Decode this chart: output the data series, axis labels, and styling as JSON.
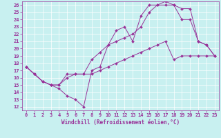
{
  "xlabel": "Windchill (Refroidissement éolien,°C)",
  "bg_color": "#c8f0f0",
  "line_color": "#993399",
  "xlim": [
    -0.5,
    23.5
  ],
  "ylim": [
    11.5,
    26.5
  ],
  "xticks": [
    0,
    1,
    2,
    3,
    4,
    5,
    6,
    7,
    8,
    9,
    10,
    11,
    12,
    13,
    14,
    15,
    16,
    17,
    18,
    19,
    20,
    21,
    22,
    23
  ],
  "yticks": [
    12,
    13,
    14,
    15,
    16,
    17,
    18,
    19,
    20,
    21,
    22,
    23,
    24,
    25,
    26
  ],
  "lines": [
    {
      "x": [
        0,
        1,
        2,
        3,
        4,
        5,
        6,
        7,
        8,
        9,
        10,
        11,
        12,
        13,
        14,
        15,
        16,
        17,
        18,
        19,
        20,
        21,
        22,
        23
      ],
      "y": [
        17.5,
        16.5,
        15.5,
        15.0,
        14.5,
        13.5,
        13.0,
        12.0,
        17.0,
        17.5,
        20.5,
        22.5,
        23.0,
        21.0,
        24.5,
        26.0,
        26.0,
        26.5,
        26.0,
        24.0,
        24.0,
        21.0,
        20.5,
        19.0
      ]
    },
    {
      "x": [
        0,
        1,
        2,
        3,
        4,
        5,
        6,
        7,
        8,
        9,
        10,
        11,
        12,
        13,
        14,
        15,
        16,
        17,
        18,
        19,
        20,
        21,
        22,
        23
      ],
      "y": [
        17.5,
        16.5,
        15.5,
        15.0,
        15.0,
        16.5,
        16.5,
        16.5,
        18.5,
        19.5,
        20.5,
        21.0,
        21.5,
        22.0,
        23.0,
        25.0,
        26.0,
        26.0,
        26.0,
        25.5,
        25.5,
        21.0,
        20.5,
        19.0
      ]
    },
    {
      "x": [
        0,
        1,
        2,
        3,
        4,
        5,
        6,
        7,
        8,
        9,
        10,
        11,
        12,
        13,
        14,
        15,
        16,
        17,
        18,
        19,
        20,
        21,
        22,
        23
      ],
      "y": [
        17.5,
        16.5,
        15.5,
        15.0,
        15.0,
        16.0,
        16.5,
        16.5,
        16.5,
        17.0,
        17.5,
        18.0,
        18.5,
        19.0,
        19.5,
        20.0,
        20.5,
        21.0,
        18.5,
        19.0,
        19.0,
        19.0,
        19.0,
        19.0
      ]
    }
  ],
  "marker": "D",
  "markersize": 2,
  "linewidth": 0.7,
  "tick_fontsize": 5,
  "xlabel_fontsize": 5.5
}
